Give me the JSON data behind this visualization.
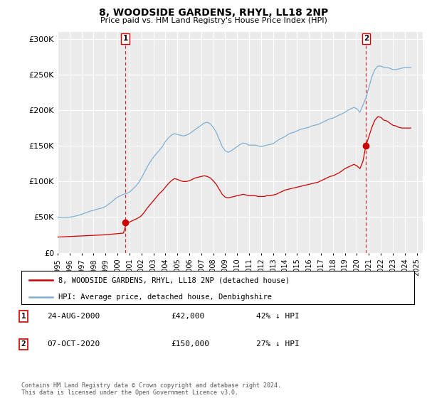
{
  "title": "8, WOODSIDE GARDENS, RHYL, LL18 2NP",
  "subtitle": "Price paid vs. HM Land Registry's House Price Index (HPI)",
  "background_color": "#ffffff",
  "plot_bg_color": "#ebebeb",
  "grid_color": "#ffffff",
  "hpi_color": "#7eb0d4",
  "price_color": "#cc0000",
  "marker_color": "#cc0000",
  "ylim": [
    0,
    310000
  ],
  "yticks": [
    0,
    50000,
    100000,
    150000,
    200000,
    250000,
    300000
  ],
  "ytick_labels": [
    "£0",
    "£50K",
    "£100K",
    "£150K",
    "£200K",
    "£250K",
    "£300K"
  ],
  "xmin": 1995.0,
  "xmax": 2025.5,
  "transactions": [
    {
      "year": 2000.65,
      "price": 42000,
      "label": "1"
    },
    {
      "year": 2020.77,
      "price": 150000,
      "label": "2"
    }
  ],
  "legend_entries": [
    {
      "label": "8, WOODSIDE GARDENS, RHYL, LL18 2NP (detached house)",
      "color": "#cc0000"
    },
    {
      "label": "HPI: Average price, detached house, Denbighshire",
      "color": "#7eb0d4"
    }
  ],
  "table_entries": [
    {
      "num": "1",
      "date": "24-AUG-2000",
      "price": "£42,000",
      "pct": "42% ↓ HPI"
    },
    {
      "num": "2",
      "date": "07-OCT-2020",
      "price": "£150,000",
      "pct": "27% ↓ HPI"
    }
  ],
  "footnote": "Contains HM Land Registry data © Crown copyright and database right 2024.\nThis data is licensed under the Open Government Licence v3.0.",
  "hpi_data": {
    "years": [
      1995.0,
      1995.25,
      1995.5,
      1995.75,
      1996.0,
      1996.25,
      1996.5,
      1996.75,
      1997.0,
      1997.25,
      1997.5,
      1997.75,
      1998.0,
      1998.25,
      1998.5,
      1998.75,
      1999.0,
      1999.25,
      1999.5,
      1999.75,
      2000.0,
      2000.25,
      2000.5,
      2000.75,
      2001.0,
      2001.25,
      2001.5,
      2001.75,
      2002.0,
      2002.25,
      2002.5,
      2002.75,
      2003.0,
      2003.25,
      2003.5,
      2003.75,
      2004.0,
      2004.25,
      2004.5,
      2004.75,
      2005.0,
      2005.25,
      2005.5,
      2005.75,
      2006.0,
      2006.25,
      2006.5,
      2006.75,
      2007.0,
      2007.25,
      2007.5,
      2007.75,
      2008.0,
      2008.25,
      2008.5,
      2008.75,
      2009.0,
      2009.25,
      2009.5,
      2009.75,
      2010.0,
      2010.25,
      2010.5,
      2010.75,
      2011.0,
      2011.25,
      2011.5,
      2011.75,
      2012.0,
      2012.25,
      2012.5,
      2012.75,
      2013.0,
      2013.25,
      2013.5,
      2013.75,
      2014.0,
      2014.25,
      2014.5,
      2014.75,
      2015.0,
      2015.25,
      2015.5,
      2015.75,
      2016.0,
      2016.25,
      2016.5,
      2016.75,
      2017.0,
      2017.25,
      2017.5,
      2017.75,
      2018.0,
      2018.25,
      2018.5,
      2018.75,
      2019.0,
      2019.25,
      2019.5,
      2019.75,
      2020.0,
      2020.25,
      2020.5,
      2020.75,
      2021.0,
      2021.25,
      2021.5,
      2021.75,
      2022.0,
      2022.25,
      2022.5,
      2022.75,
      2023.0,
      2023.25,
      2023.5,
      2023.75,
      2024.0,
      2024.25,
      2024.5
    ],
    "values": [
      50000,
      49500,
      49000,
      49500,
      50000,
      50500,
      51500,
      52500,
      54000,
      55500,
      57000,
      58500,
      59500,
      61000,
      62000,
      63000,
      65000,
      68000,
      71000,
      75000,
      78000,
      80000,
      82000,
      83000,
      85000,
      89000,
      93000,
      98000,
      105000,
      113000,
      121000,
      128000,
      134000,
      139000,
      144000,
      149000,
      156000,
      161000,
      165000,
      167000,
      166000,
      165000,
      164000,
      165000,
      167000,
      170000,
      173000,
      176000,
      179000,
      182000,
      183000,
      181000,
      176000,
      169000,
      159000,
      149000,
      143000,
      141000,
      143000,
      146000,
      149000,
      152000,
      154000,
      153000,
      151000,
      151000,
      151000,
      150000,
      149000,
      150000,
      151000,
      152000,
      153000,
      156000,
      159000,
      161000,
      163000,
      166000,
      168000,
      169000,
      171000,
      173000,
      174000,
      175000,
      176000,
      178000,
      179000,
      180000,
      182000,
      184000,
      186000,
      188000,
      189000,
      191000,
      193000,
      195000,
      197000,
      200000,
      202000,
      204000,
      202000,
      197000,
      207000,
      217000,
      232000,
      247000,
      257000,
      262000,
      262000,
      260000,
      260000,
      259000,
      257000,
      257000,
      258000,
      259000,
      260000,
      260000,
      260000
    ]
  },
  "price_data": {
    "years": [
      1995.0,
      1995.25,
      1995.5,
      1995.75,
      1996.0,
      1996.25,
      1996.5,
      1996.75,
      1997.0,
      1997.25,
      1997.5,
      1997.75,
      1998.0,
      1998.25,
      1998.5,
      1998.75,
      1999.0,
      1999.25,
      1999.5,
      1999.75,
      2000.0,
      2000.25,
      2000.5,
      2000.75,
      2001.0,
      2001.25,
      2001.5,
      2001.75,
      2002.0,
      2002.25,
      2002.5,
      2002.75,
      2003.0,
      2003.25,
      2003.5,
      2003.75,
      2004.0,
      2004.25,
      2004.5,
      2004.75,
      2005.0,
      2005.25,
      2005.5,
      2005.75,
      2006.0,
      2006.25,
      2006.5,
      2006.75,
      2007.0,
      2007.25,
      2007.5,
      2007.75,
      2008.0,
      2008.25,
      2008.5,
      2008.75,
      2009.0,
      2009.25,
      2009.5,
      2009.75,
      2010.0,
      2010.25,
      2010.5,
      2010.75,
      2011.0,
      2011.25,
      2011.5,
      2011.75,
      2012.0,
      2012.25,
      2012.5,
      2012.75,
      2013.0,
      2013.25,
      2013.5,
      2013.75,
      2014.0,
      2014.25,
      2014.5,
      2014.75,
      2015.0,
      2015.25,
      2015.5,
      2015.75,
      2016.0,
      2016.25,
      2016.5,
      2016.75,
      2017.0,
      2017.25,
      2017.5,
      2017.75,
      2018.0,
      2018.25,
      2018.5,
      2018.75,
      2019.0,
      2019.25,
      2019.5,
      2019.75,
      2020.0,
      2020.25,
      2020.5,
      2020.75,
      2021.0,
      2021.25,
      2021.5,
      2021.75,
      2022.0,
      2022.25,
      2022.5,
      2022.75,
      2023.0,
      2023.25,
      2023.5,
      2023.75,
      2024.0,
      2024.25,
      2024.5
    ],
    "values": [
      22000,
      22200,
      22400,
      22600,
      22800,
      23000,
      23200,
      23400,
      23600,
      23800,
      24000,
      24200,
      24400,
      24600,
      24800,
      25000,
      25300,
      25600,
      26000,
      26400,
      26800,
      27200,
      27600,
      42000,
      43000,
      45000,
      47000,
      49000,
      52000,
      57000,
      63000,
      68000,
      73000,
      78000,
      83000,
      87000,
      92000,
      97000,
      101000,
      104000,
      103000,
      101000,
      100000,
      100000,
      101000,
      103000,
      105000,
      106000,
      107000,
      108000,
      107000,
      105000,
      101000,
      96000,
      89000,
      82000,
      78000,
      77000,
      78000,
      79000,
      80000,
      81000,
      82000,
      81000,
      80000,
      80000,
      80000,
      79000,
      79000,
      79000,
      80000,
      80000,
      81000,
      82000,
      84000,
      86000,
      88000,
      89000,
      90000,
      91000,
      92000,
      93000,
      94000,
      95000,
      96000,
      97000,
      98000,
      99000,
      101000,
      103000,
      105000,
      107000,
      108000,
      110000,
      112000,
      115000,
      118000,
      120000,
      122000,
      124000,
      122000,
      118000,
      128000,
      150000,
      163000,
      176000,
      186000,
      191000,
      190000,
      186000,
      185000,
      182000,
      179000,
      178000,
      176000,
      175000,
      175000,
      175000,
      175000
    ]
  }
}
